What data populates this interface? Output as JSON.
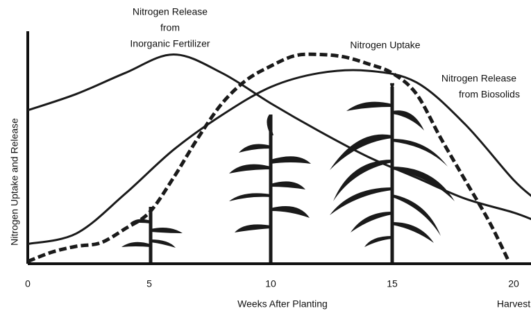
{
  "chart_data": {
    "type": "line",
    "x_label": "Weeks After Planting",
    "y_label": "Nitrogen Uptake and Release",
    "xlim": [
      0,
      21
    ],
    "ylim": [
      0,
      100
    ],
    "xticks": [
      0,
      5,
      10,
      15,
      20
    ],
    "x_annotation": {
      "x": 20,
      "text": "Harvest"
    },
    "series": [
      {
        "label_lines": [
          "Nitrogen Release",
          "from",
          "Inorganic Fertilizer"
        ],
        "color": "#1a1a1a",
        "dashed": false,
        "x": [
          0,
          2,
          4,
          6,
          8,
          10,
          12,
          14,
          16,
          18,
          20,
          21
        ],
        "values": [
          66,
          73,
          82,
          90,
          82,
          69,
          57,
          46,
          37,
          28,
          22,
          18
        ]
      },
      {
        "label_lines": [
          "Nitrogen Uptake"
        ],
        "color": "#1a1a1a",
        "dashed": true,
        "x": [
          0,
          1,
          2,
          3,
          4,
          5,
          6,
          7,
          8,
          9,
          10,
          11,
          12,
          13,
          14,
          15,
          16,
          17,
          18,
          19,
          19.8
        ],
        "values": [
          1,
          5,
          7.5,
          9,
          15,
          22,
          37,
          54,
          69,
          79,
          85,
          89.5,
          90,
          89,
          86,
          82,
          73,
          54,
          36,
          18,
          1
        ]
      },
      {
        "label_lines": [
          "Nitrogen Release",
          "from Biosolids"
        ],
        "color": "#1a1a1a",
        "dashed": false,
        "x": [
          0,
          2,
          4,
          6,
          8,
          10,
          12,
          14,
          16,
          18,
          20,
          21
        ],
        "values": [
          8.5,
          13,
          30,
          49,
          64,
          76,
          82,
          83,
          78,
          60,
          36,
          27
        ]
      }
    ]
  }
}
